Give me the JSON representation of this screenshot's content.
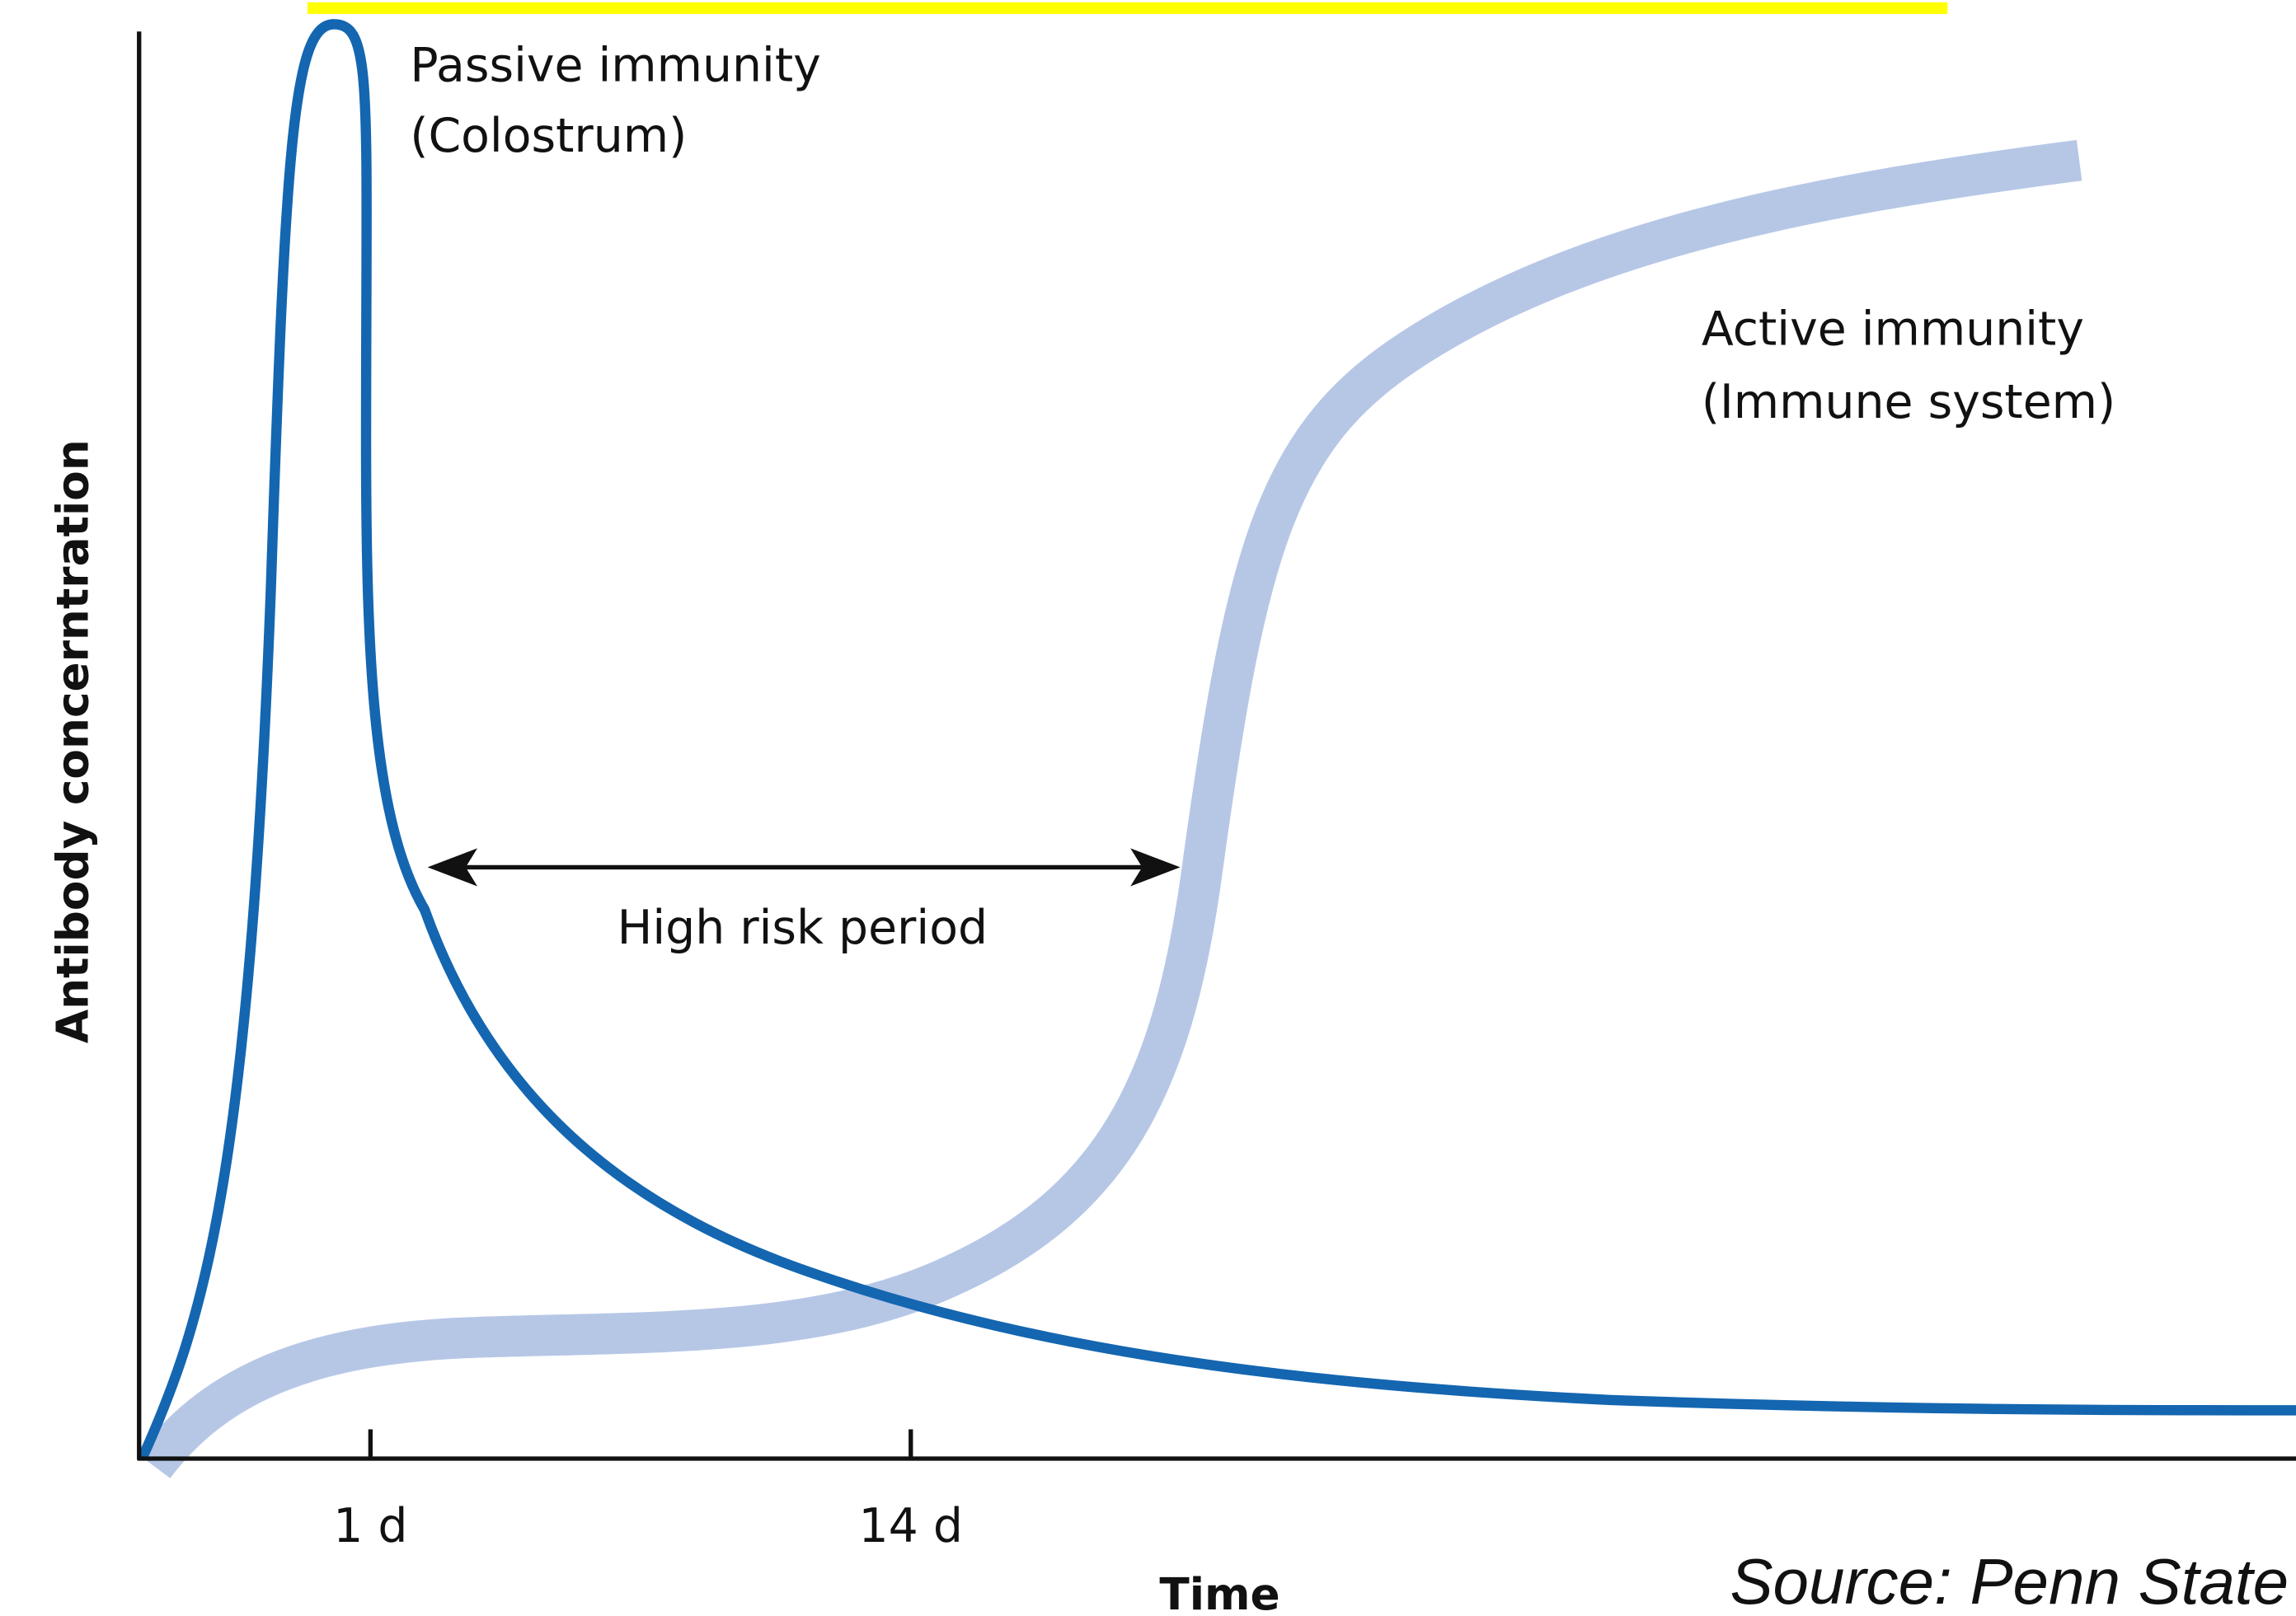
{
  "axes": {
    "y_label": "Antibody concerntration",
    "x_label": "Time",
    "x_ticks": [
      "1 d",
      "14 d"
    ]
  },
  "annotations": {
    "passive": [
      "Passive immunity",
      "(Colostrum)"
    ],
    "active": [
      "Active immunity",
      "(Immune system)"
    ],
    "risk": "High risk period"
  },
  "source": "Source: Penn State"
}
